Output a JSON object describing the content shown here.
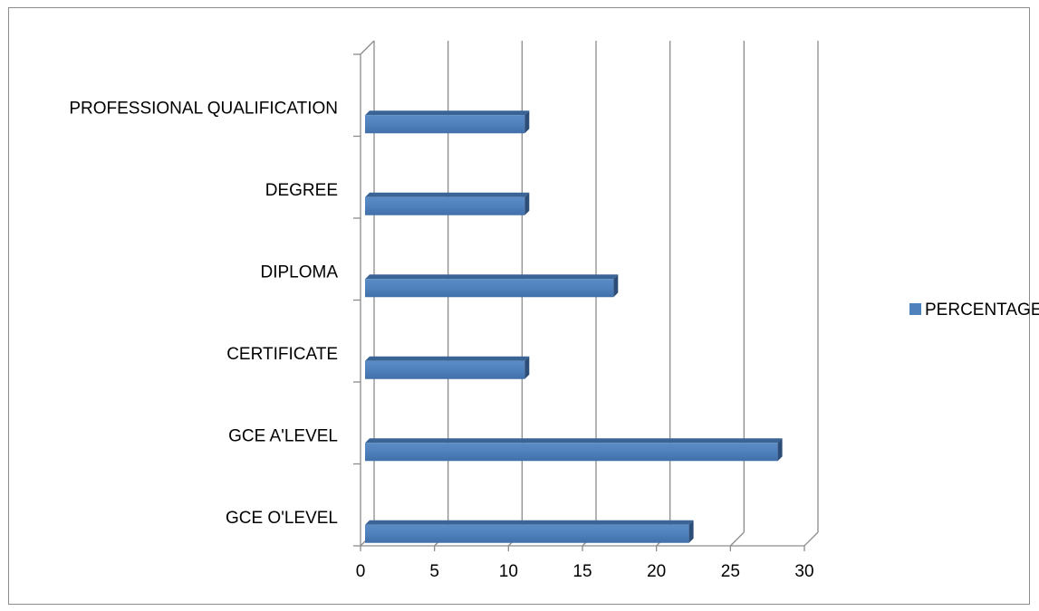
{
  "chart_data": {
    "type": "bar",
    "orientation": "horizontal",
    "style": "3d",
    "categories": [
      "GCE O'LEVEL",
      "GCE A'LEVEL",
      "CERTIFICATE",
      "DIPLOMA",
      "DEGREE",
      "PROFESSIONAL QUALIFICATION"
    ],
    "series": [
      {
        "name": "PERCENTAGE",
        "values": [
          22.2,
          28.2,
          11.1,
          17.1,
          11.1,
          11.1
        ],
        "color": "#4F81BD"
      }
    ],
    "xlim": [
      0,
      30
    ],
    "xticks": [
      "0",
      "5",
      "10",
      "15",
      "20",
      "25",
      "30"
    ],
    "grid": true,
    "legend_position": "right"
  }
}
